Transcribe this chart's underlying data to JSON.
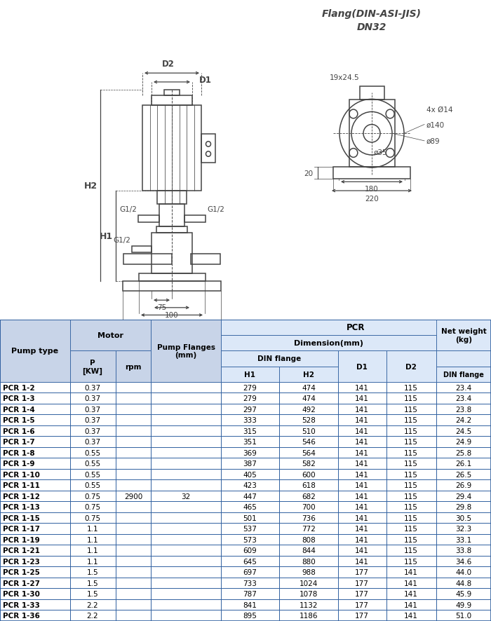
{
  "flange_label_line1": "Flang(DIN-ASI-JIS)",
  "flange_label_line2": "DN32",
  "rows": [
    [
      "PCR 1-2",
      0.37,
      "",
      "",
      279,
      474,
      141,
      115,
      23.4
    ],
    [
      "PCR 1-3",
      0.37,
      "",
      "",
      279,
      474,
      141,
      115,
      23.4
    ],
    [
      "PCR 1-4",
      0.37,
      "",
      "",
      297,
      492,
      141,
      115,
      23.8
    ],
    [
      "PCR 1-5",
      0.37,
      "",
      "",
      333,
      528,
      141,
      115,
      24.2
    ],
    [
      "PCR 1-6",
      0.37,
      "",
      "",
      315,
      510,
      141,
      115,
      24.5
    ],
    [
      "PCR 1-7",
      0.37,
      "",
      "",
      351,
      546,
      141,
      115,
      24.9
    ],
    [
      "PCR 1-8",
      0.55,
      "",
      "",
      369,
      564,
      141,
      115,
      25.8
    ],
    [
      "PCR 1-9",
      0.55,
      "",
      "",
      387,
      582,
      141,
      115,
      26.1
    ],
    [
      "PCR 1-10",
      0.55,
      "",
      "",
      405,
      600,
      141,
      115,
      26.5
    ],
    [
      "PCR 1-11",
      0.55,
      "",
      "",
      423,
      618,
      141,
      115,
      26.9
    ],
    [
      "PCR 1-12",
      0.75,
      "2900",
      "32",
      447,
      682,
      141,
      115,
      29.4
    ],
    [
      "PCR 1-13",
      0.75,
      "",
      "",
      465,
      700,
      141,
      115,
      29.8
    ],
    [
      "PCR 1-15",
      0.75,
      "",
      "",
      501,
      736,
      141,
      115,
      30.5
    ],
    [
      "PCR 1-17",
      1.1,
      "",
      "",
      537,
      772,
      141,
      115,
      32.3
    ],
    [
      "PCR 1-19",
      1.1,
      "",
      "",
      573,
      808,
      141,
      115,
      33.1
    ],
    [
      "PCR 1-21",
      1.1,
      "",
      "",
      609,
      844,
      141,
      115,
      33.8
    ],
    [
      "PCR 1-23",
      1.1,
      "",
      "",
      645,
      880,
      141,
      115,
      34.6
    ],
    [
      "PCR 1-25",
      1.5,
      "",
      "",
      697,
      988,
      177,
      141,
      44.0
    ],
    [
      "PCR 1-27",
      1.5,
      "",
      "",
      733,
      1024,
      177,
      141,
      44.8
    ],
    [
      "PCR 1-30",
      1.5,
      "",
      "",
      787,
      1078,
      177,
      141,
      45.9
    ],
    [
      "PCR 1-33",
      2.2,
      "",
      "",
      841,
      1132,
      177,
      141,
      49.9
    ],
    [
      "PCR 1-36",
      2.2,
      "",
      "",
      895,
      1186,
      177,
      141,
      51.0
    ]
  ],
  "bg_color": "#ffffff",
  "header_bg1": "#c8d4e8",
  "header_bg2": "#dce8f8",
  "border_color": "#3060a0",
  "line_color": "#444444"
}
